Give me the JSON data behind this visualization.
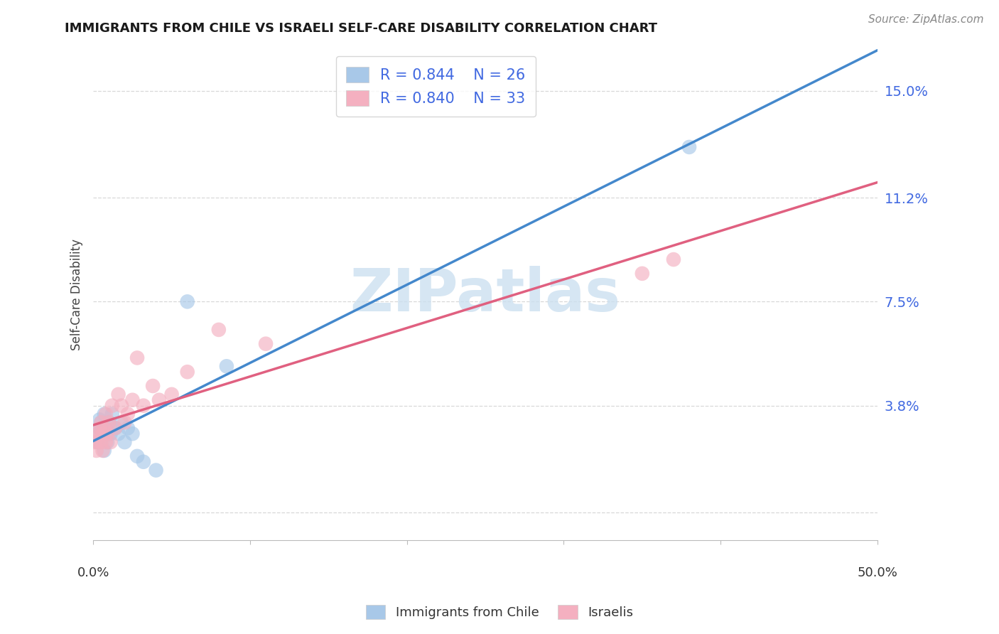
{
  "title": "IMMIGRANTS FROM CHILE VS ISRAELI SELF-CARE DISABILITY CORRELATION CHART",
  "source": "Source: ZipAtlas.com",
  "ylabel": "Self-Care Disability",
  "xlim": [
    0.0,
    0.5
  ],
  "ylim": [
    -0.01,
    0.165
  ],
  "blue_R": "0.844",
  "blue_N": "26",
  "pink_R": "0.840",
  "pink_N": "33",
  "blue_scatter_color": "#a8c8e8",
  "pink_scatter_color": "#f4b0c0",
  "blue_line_color": "#4488cc",
  "pink_line_color": "#e06080",
  "legend_label_blue": "Immigrants from Chile",
  "legend_label_pink": "Israelis",
  "watermark_text": "ZIPatlas",
  "watermark_color": "#cce0f0",
  "ytick_vals": [
    0.0,
    0.038,
    0.075,
    0.112,
    0.15
  ],
  "ytick_labels": [
    "",
    "3.8%",
    "7.5%",
    "11.2%",
    "15.0%"
  ],
  "background_color": "#ffffff",
  "grid_color": "#d8d8d8",
  "axis_label_color": "#4169E1",
  "blue_x": [
    0.002,
    0.003,
    0.004,
    0.004,
    0.005,
    0.005,
    0.006,
    0.007,
    0.007,
    0.008,
    0.009,
    0.01,
    0.011,
    0.012,
    0.014,
    0.016,
    0.018,
    0.02,
    0.022,
    0.025,
    0.028,
    0.032,
    0.04,
    0.06,
    0.085,
    0.38
  ],
  "blue_y": [
    0.028,
    0.025,
    0.03,
    0.033,
    0.026,
    0.032,
    0.028,
    0.022,
    0.035,
    0.03,
    0.025,
    0.032,
    0.028,
    0.035,
    0.03,
    0.028,
    0.032,
    0.025,
    0.03,
    0.028,
    0.02,
    0.018,
    0.015,
    0.075,
    0.052,
    0.13
  ],
  "pink_x": [
    0.001,
    0.002,
    0.003,
    0.003,
    0.004,
    0.004,
    0.005,
    0.005,
    0.006,
    0.006,
    0.007,
    0.008,
    0.008,
    0.009,
    0.01,
    0.011,
    0.012,
    0.014,
    0.016,
    0.018,
    0.02,
    0.022,
    0.025,
    0.028,
    0.032,
    0.038,
    0.042,
    0.05,
    0.06,
    0.08,
    0.11,
    0.35,
    0.37
  ],
  "pink_y": [
    0.025,
    0.022,
    0.028,
    0.025,
    0.03,
    0.027,
    0.025,
    0.032,
    0.028,
    0.022,
    0.03,
    0.025,
    0.035,
    0.028,
    0.032,
    0.025,
    0.038,
    0.03,
    0.042,
    0.038,
    0.032,
    0.035,
    0.04,
    0.055,
    0.038,
    0.045,
    0.04,
    0.042,
    0.05,
    0.065,
    0.06,
    0.085,
    0.09
  ]
}
